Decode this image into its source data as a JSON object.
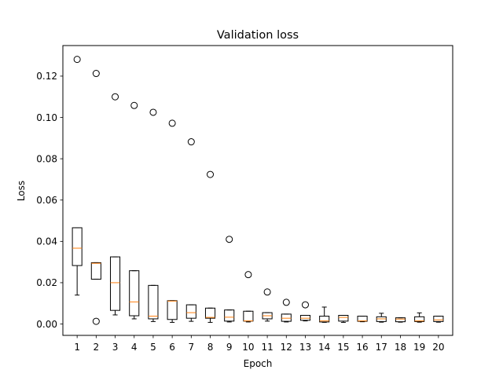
{
  "chart_data": {
    "type": "box",
    "title": "Validation loss",
    "xlabel": "Epoch",
    "ylabel": "Loss",
    "ylim": [
      -0.0055,
      0.1348
    ],
    "yticks": [
      0.0,
      0.02,
      0.04,
      0.06,
      0.08,
      0.1,
      0.12
    ],
    "ytick_labels": [
      "0.00",
      "0.02",
      "0.04",
      "0.06",
      "0.08",
      "0.10",
      "0.12"
    ],
    "categories": [
      "1",
      "2",
      "3",
      "4",
      "5",
      "6",
      "7",
      "8",
      "9",
      "10",
      "11",
      "12",
      "13",
      "14",
      "15",
      "16",
      "17",
      "18",
      "19",
      "20"
    ],
    "box_color": "#000000",
    "median_color": "#ff7f0e",
    "boxes": [
      {
        "whislo": 0.014,
        "q1": 0.0283,
        "med": 0.0367,
        "q3": 0.0466,
        "whishi": 0.0466,
        "fliers": [
          0.1281
        ]
      },
      {
        "whislo": 0.0217,
        "q1": 0.0217,
        "med": 0.0294,
        "q3": 0.0297,
        "whishi": 0.0297,
        "fliers": [
          0.0013,
          0.1213
        ]
      },
      {
        "whislo": 0.0044,
        "q1": 0.0066,
        "med": 0.02,
        "q3": 0.0325,
        "whishi": 0.0325,
        "fliers": [
          0.11
        ]
      },
      {
        "whislo": 0.0025,
        "q1": 0.004,
        "med": 0.0107,
        "q3": 0.0258,
        "whishi": 0.0258,
        "fliers": [
          0.1058
        ]
      },
      {
        "whislo": 0.0012,
        "q1": 0.0025,
        "med": 0.0038,
        "q3": 0.0187,
        "whishi": 0.0187,
        "fliers": [
          0.1025
        ]
      },
      {
        "whislo": 0.0008,
        "q1": 0.0022,
        "med": 0.0111,
        "q3": 0.0113,
        "whishi": 0.0113,
        "fliers": [
          0.0972
        ]
      },
      {
        "whislo": 0.0013,
        "q1": 0.0028,
        "med": 0.0055,
        "q3": 0.0093,
        "whishi": 0.0093,
        "fliers": [
          0.0882
        ]
      },
      {
        "whislo": 0.0008,
        "q1": 0.0028,
        "med": 0.0032,
        "q3": 0.0077,
        "whishi": 0.0077,
        "fliers": [
          0.0724
        ]
      },
      {
        "whislo": 0.001,
        "q1": 0.0014,
        "med": 0.0033,
        "q3": 0.0068,
        "whishi": 0.0068,
        "fliers": [
          0.041
        ]
      },
      {
        "whislo": 0.001,
        "q1": 0.0014,
        "med": 0.0015,
        "q3": 0.0062,
        "whishi": 0.0062,
        "fliers": [
          0.0239
        ]
      },
      {
        "whislo": 0.0014,
        "q1": 0.0025,
        "med": 0.004,
        "q3": 0.0055,
        "whishi": 0.0055,
        "fliers": [
          0.0155
        ]
      },
      {
        "whislo": 0.001,
        "q1": 0.0013,
        "med": 0.0028,
        "q3": 0.0048,
        "whishi": 0.0048,
        "fliers": [
          0.0105
        ]
      },
      {
        "whislo": 0.0015,
        "q1": 0.0018,
        "med": 0.0028,
        "q3": 0.0042,
        "whishi": 0.0042,
        "fliers": [
          0.0093
        ]
      },
      {
        "whislo": 0.0008,
        "q1": 0.001,
        "med": 0.0015,
        "q3": 0.0038,
        "whishi": 0.0082,
        "fliers": []
      },
      {
        "whislo": 0.0008,
        "q1": 0.0014,
        "med": 0.0032,
        "q3": 0.0042,
        "whishi": 0.0042,
        "fliers": []
      },
      {
        "whislo": 0.0011,
        "q1": 0.0013,
        "med": 0.0015,
        "q3": 0.0038,
        "whishi": 0.0038,
        "fliers": []
      },
      {
        "whislo": 0.0009,
        "q1": 0.0012,
        "med": 0.0025,
        "q3": 0.0035,
        "whishi": 0.0052,
        "fliers": []
      },
      {
        "whislo": 0.0009,
        "q1": 0.0011,
        "med": 0.0024,
        "q3": 0.003,
        "whishi": 0.003,
        "fliers": []
      },
      {
        "whislo": 0.0009,
        "q1": 0.0012,
        "med": 0.0015,
        "q3": 0.0035,
        "whishi": 0.0054,
        "fliers": []
      },
      {
        "whislo": 0.0009,
        "q1": 0.0012,
        "med": 0.002,
        "q3": 0.0038,
        "whishi": 0.0038,
        "fliers": []
      }
    ]
  }
}
